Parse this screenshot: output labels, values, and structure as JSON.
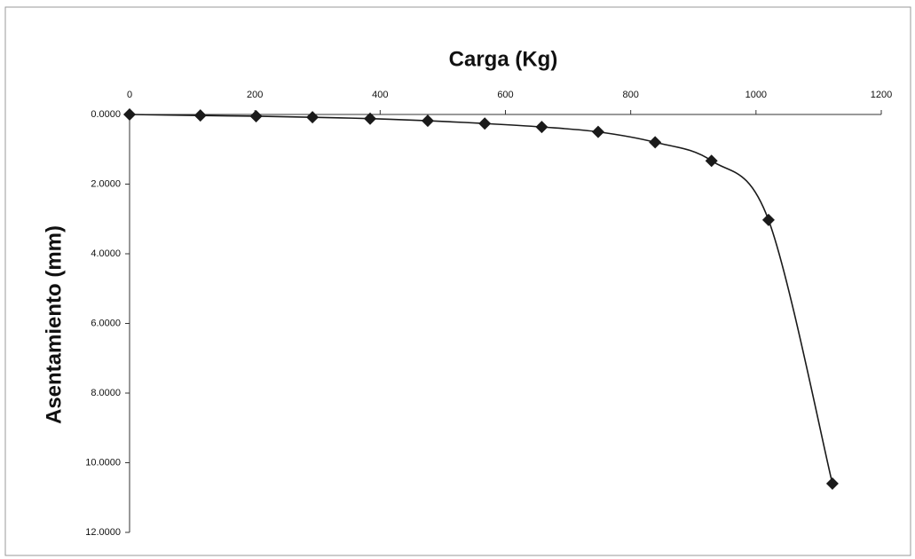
{
  "chart_data": {
    "type": "line",
    "title": "Carga (Kg)",
    "y_label": "Asentamiento (mm)",
    "x": [
      0,
      113,
      202,
      292,
      384,
      476,
      567,
      658,
      748,
      839,
      929,
      1020,
      1122
    ],
    "values": [
      0,
      0.03,
      0.05,
      0.08,
      0.12,
      0.18,
      0.26,
      0.36,
      0.5,
      0.8,
      1.33,
      3.03,
      10.6
    ],
    "color": "#1a1a1a",
    "xlim": [
      0,
      1200
    ],
    "xticks": [
      0,
      200,
      400,
      600,
      800,
      1000,
      1200
    ],
    "ylim": [
      0,
      12
    ],
    "yticks": [
      {
        "value": 0,
        "label": "0.0000"
      },
      {
        "value": 2,
        "label": "2.0000"
      },
      {
        "value": 4,
        "label": "4.0000"
      },
      {
        "value": 6,
        "label": "6.0000"
      },
      {
        "value": 8,
        "label": "8.0000"
      },
      {
        "value": 10,
        "label": "10.0000"
      },
      {
        "value": 12,
        "label": "12.0000"
      }
    ],
    "y_reversed": true,
    "x_axis_position": "top",
    "grid": false
  }
}
